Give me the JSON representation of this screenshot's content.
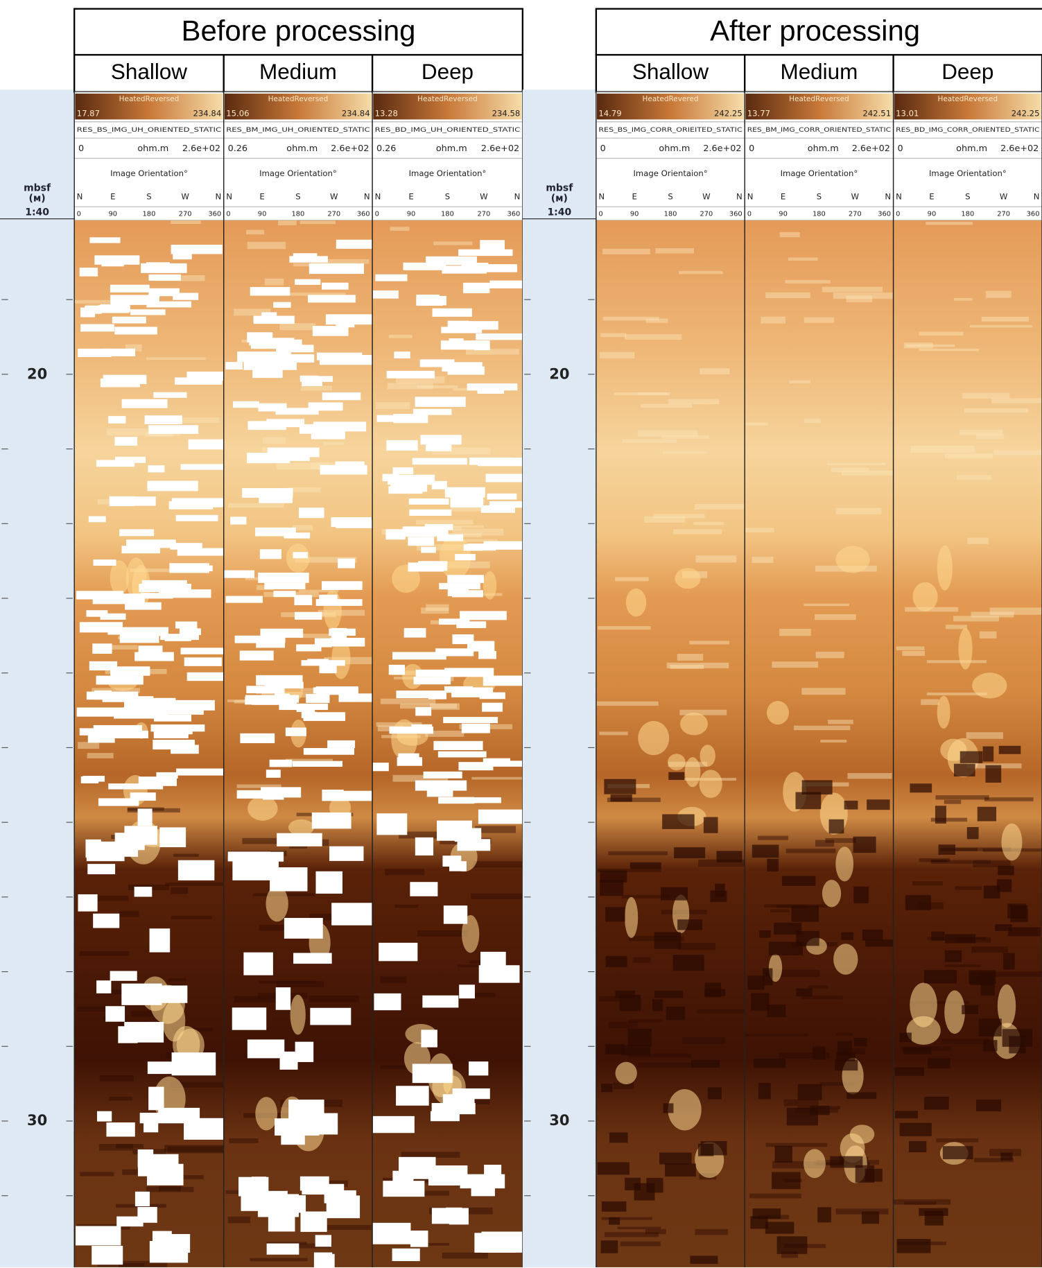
{
  "panels": [
    {
      "title": "Before processing",
      "depth_header": [
        "mbsf",
        "(м)",
        "1:40"
      ],
      "depth_labels": [
        "20",
        "30"
      ],
      "tracks": [
        {
          "name": "Shallow",
          "palette": "HeatedReversed",
          "min": "17.87",
          "max": "234.84",
          "curve": "RES_BS_IMG_UH_ORIENTED_STATIC",
          "scale_min": "0",
          "unit": "ohm.m",
          "scale_max": "2.6e+02",
          "orientation_title": "Image Orientation°"
        },
        {
          "name": "Medium",
          "palette": "HeatedReversed",
          "min": "15.06",
          "max": "234.84",
          "curve": "RES_BM_IMG_UH_ORIENTED_STATIC",
          "scale_min": "0.26",
          "unit": "ohm.m",
          "scale_max": "2.6e+02",
          "orientation_title": "Image Orientation°"
        },
        {
          "name": "Deep",
          "palette": "HeatedReversed",
          "min": "13.28",
          "max": "234.58",
          "curve": "RES_BD_IMG_UH_ORIENTED_STATIC",
          "scale_min": "0.26",
          "unit": "ohm.m",
          "scale_max": "2.6e+02",
          "orientation_title": "Image Orientation°"
        }
      ]
    },
    {
      "title": "After processing",
      "depth_header": [
        "mbsf",
        "(м)",
        "1:40"
      ],
      "depth_labels": [
        "20",
        "30"
      ],
      "tracks": [
        {
          "name": "Shallow",
          "palette": "HeatedRevered",
          "min": "14.79",
          "max": "242.25",
          "curve": "RES_BS_IMG_CORR_ORIEITED_STATIC",
          "scale_min": "0",
          "unit": "ohm.m",
          "scale_max": "2.6e+02",
          "orientation_title": "Image Orientaion°"
        },
        {
          "name": "Medium",
          "palette": "HeatedReversed",
          "min": "13.77",
          "max": "242.51",
          "curve": "RES_BM_IMG_CORR_ORIENTED_STATIC",
          "scale_min": "0",
          "unit": "ohm.m",
          "scale_max": "2.6e+02",
          "orientation_title": "Image Orientation°"
        },
        {
          "name": "Deep",
          "palette": "HeatedReversed",
          "min": "13.01",
          "max": "242.25",
          "curve": "RES_BD_IMG_CORR_ORIENTED_STATIC",
          "scale_min": "0",
          "unit": "ohm.m",
          "scale_max": "2.6e+02",
          "orientation_title": "Image Orientation°"
        }
      ]
    }
  ],
  "compass": [
    "N",
    "E",
    "S",
    "W",
    "N"
  ],
  "degrees": [
    "0",
    "90",
    "180",
    "270",
    "360"
  ]
}
